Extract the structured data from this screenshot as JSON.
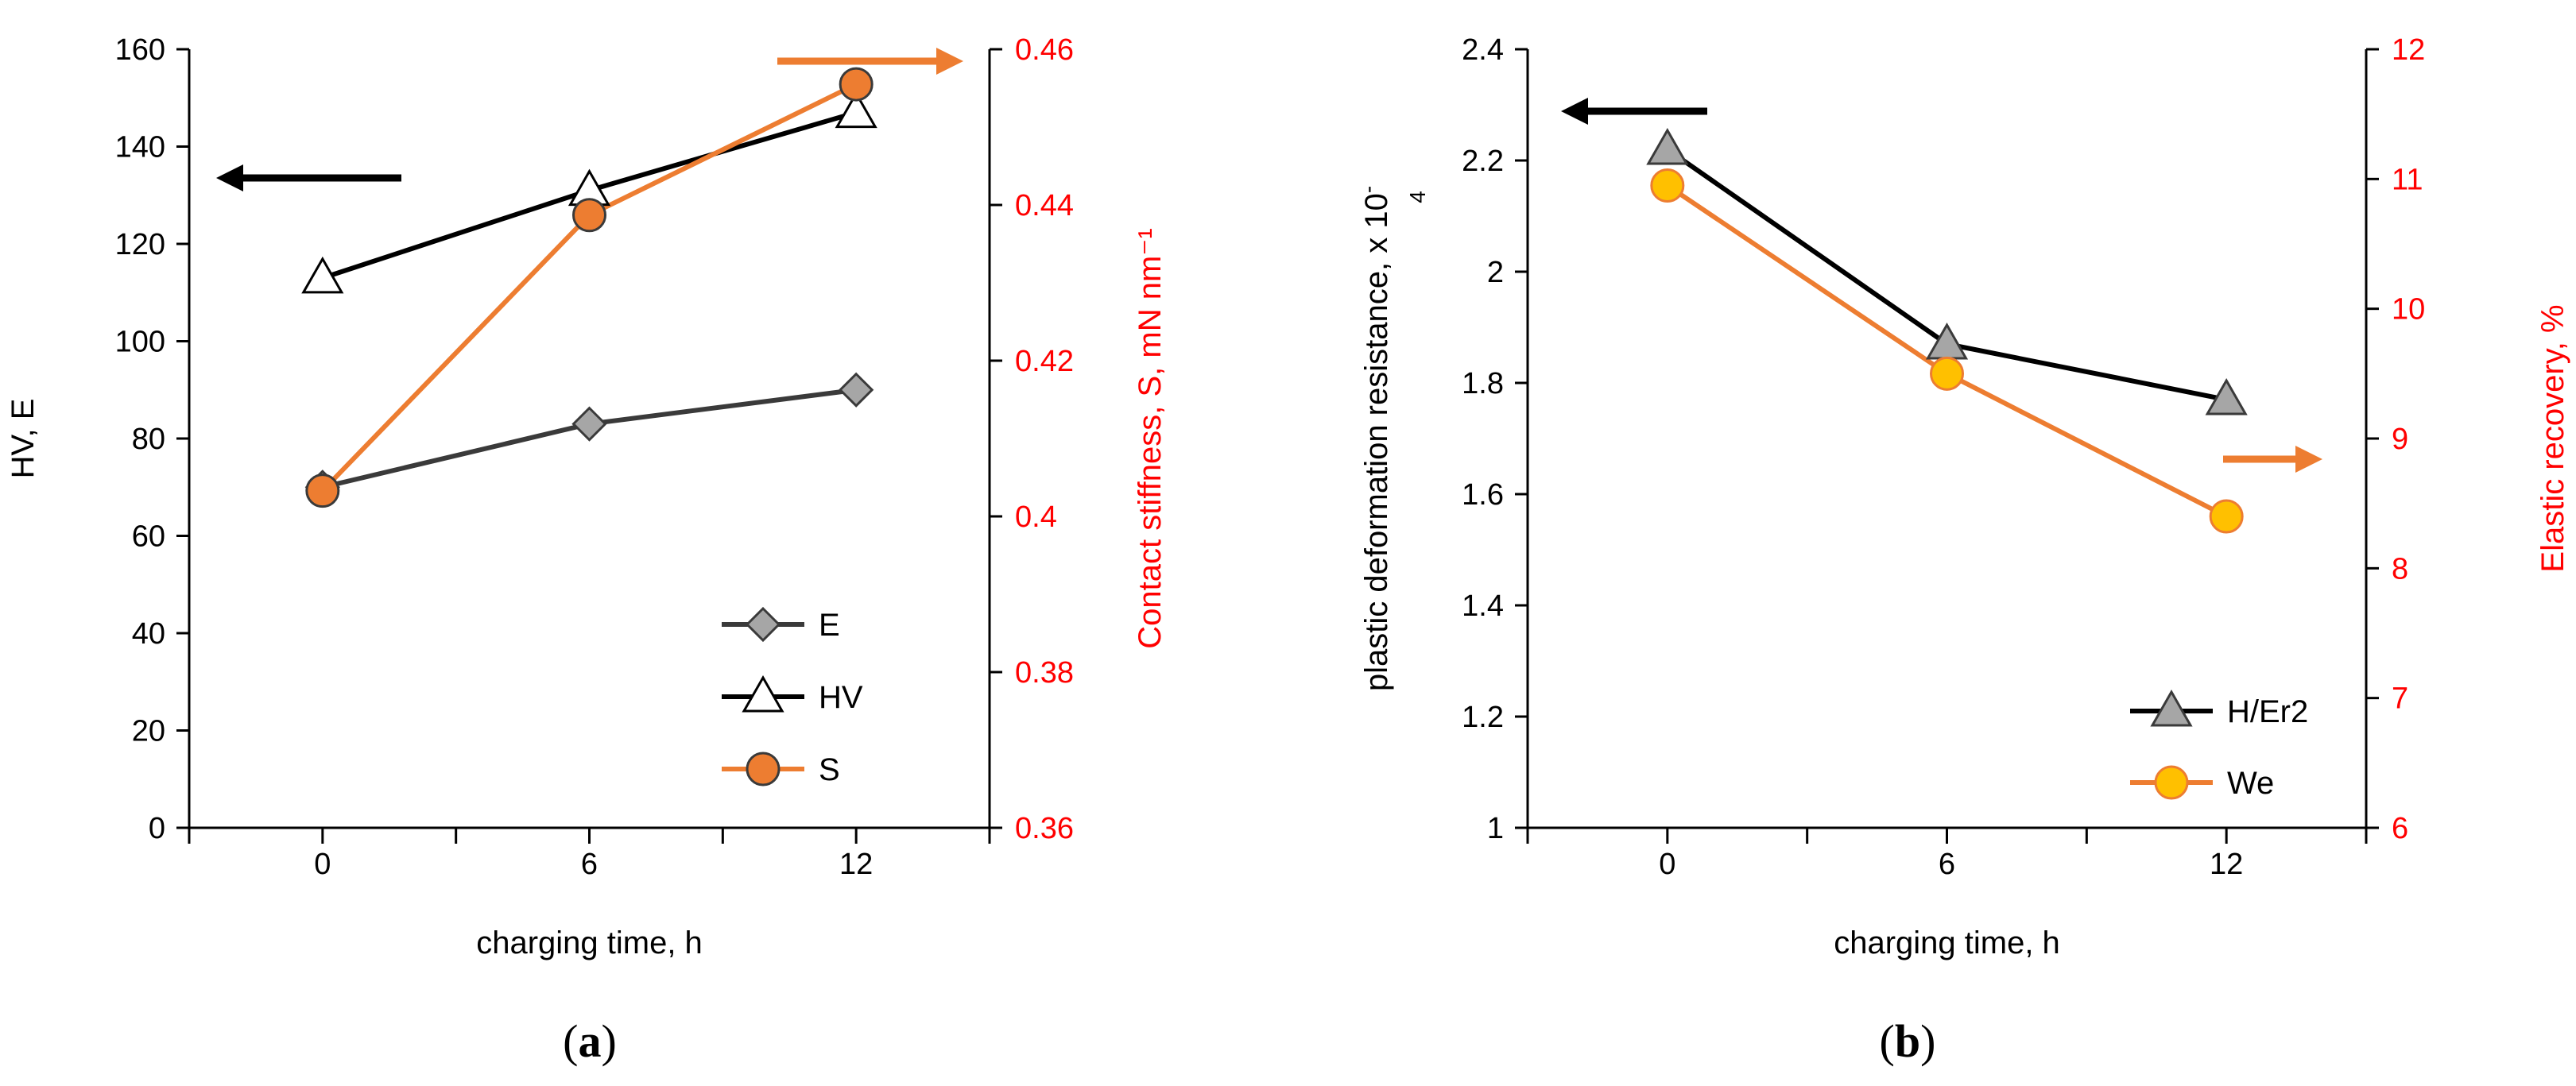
{
  "chart_data": [
    {
      "type": "line",
      "panel": "(a)",
      "caption_open": "(",
      "caption_letter": "a",
      "caption_close": ")",
      "xlabel": "charging time, h",
      "categories": [
        "0",
        "6",
        "12"
      ],
      "x": [
        0,
        6,
        12
      ],
      "xlim": [
        -3,
        15
      ],
      "ylabel_left": "HV, E",
      "ylim_left": [
        0,
        160
      ],
      "yticks_left": [
        0,
        20,
        40,
        60,
        80,
        100,
        120,
        140,
        160
      ],
      "ylabel_right": "Contact stiffness, S, mN nm⁻¹",
      "ylim_right": [
        0.36,
        0.46
      ],
      "yticks_right": [
        "0.36",
        "0.38",
        "0.4",
        "0.42",
        "0.44",
        "0.46"
      ],
      "grid": false,
      "legend_position": "bottom-right",
      "series": [
        {
          "name": "E",
          "axis": "left",
          "marker": "diamond",
          "values": [
            70,
            83,
            90
          ],
          "line_color": "#3a3a3a",
          "marker_fill": "#a6a6a6"
        },
        {
          "name": "HV",
          "axis": "left",
          "marker": "triangle-open",
          "values": [
            113,
            131,
            147
          ],
          "line_color": "#000000",
          "marker_fill": "#ffffff"
        },
        {
          "name": "S",
          "axis": "right",
          "marker": "circle",
          "values": [
            0.4033,
            0.4387,
            0.4555
          ],
          "line_color": "#ed7d31",
          "marker_fill": "#ed7d31"
        }
      ],
      "annotations": [
        {
          "type": "arrow",
          "direction": "left",
          "points_to": "left axis",
          "color": "#000000"
        },
        {
          "type": "arrow",
          "direction": "right",
          "points_to": "right axis",
          "color": "#ed7d31"
        }
      ]
    },
    {
      "type": "line",
      "panel": "(b)",
      "caption_open": "(",
      "caption_letter": "b",
      "caption_close": ")",
      "xlabel": "charging time, h",
      "categories": [
        "0",
        "6",
        "12"
      ],
      "x": [
        0,
        6,
        12
      ],
      "xlim": [
        -3,
        15
      ],
      "ylabel_left": "plastic deformation resistance, x 10",
      "ylabel_left_superscript": "-",
      "ylabel_left_exponent": "4",
      "ylim_left": [
        1,
        2.4
      ],
      "yticks_left": [
        "1",
        "1.2",
        "1.4",
        "1.6",
        "1.8",
        "2",
        "2.2",
        "2.4"
      ],
      "ylabel_right": "Elastic recovery, %",
      "ylim_right": [
        6,
        12
      ],
      "yticks_right": [
        "6",
        "7",
        "8",
        "9",
        "10",
        "11",
        "12"
      ],
      "grid": false,
      "legend_position": "bottom-right",
      "series": [
        {
          "name": "H/Er2",
          "axis": "left",
          "marker": "triangle",
          "values": [
            2.22,
            1.87,
            1.77
          ],
          "line_color": "#000000",
          "marker_fill": "#a6a6a6"
        },
        {
          "name": "We",
          "axis": "right",
          "marker": "circle",
          "values": [
            10.95,
            9.5,
            8.4
          ],
          "line_color": "#ed7d31",
          "marker_fill": "#ffc000"
        }
      ],
      "annotations": [
        {
          "type": "arrow",
          "direction": "left",
          "points_to": "left axis",
          "color": "#000000"
        },
        {
          "type": "arrow",
          "direction": "right",
          "points_to": "right axis",
          "color": "#ed7d31"
        }
      ]
    }
  ],
  "colors": {
    "axis_left": "#000000",
    "axis_right": "#ff0000",
    "orange": "#ed7d31",
    "gold": "#ffc000",
    "gray": "#a6a6a6"
  }
}
